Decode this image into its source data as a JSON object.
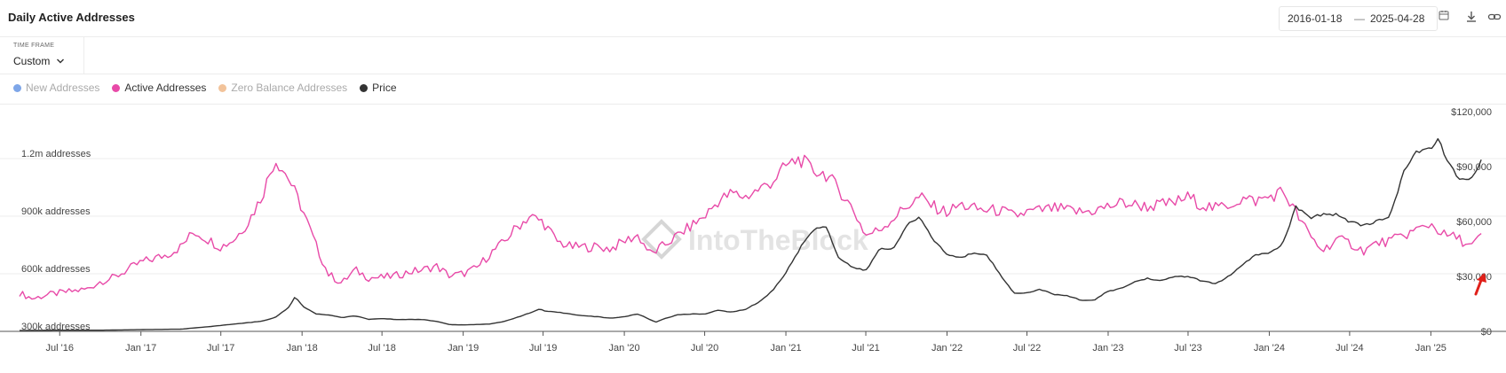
{
  "header": {
    "title": "Daily Active Addresses",
    "date_start": "2016-01-18",
    "date_separator": "—",
    "date_end": "2025-04-28"
  },
  "timeframe": {
    "label": "TIME FRAME",
    "value": "Custom"
  },
  "legend": [
    {
      "label": "New Addresses",
      "color": "#7ea6e8",
      "active": false
    },
    {
      "label": "Active Addresses",
      "color": "#e84aa8",
      "active": true
    },
    {
      "label": "Zero Balance Addresses",
      "color": "#f2c39a",
      "active": false
    },
    {
      "label": "Price",
      "color": "#333333",
      "active": true
    }
  ],
  "watermark": "IntoTheBlock",
  "chart_data": {
    "type": "line",
    "x_range": [
      "2016-04-01",
      "2025-05-15"
    ],
    "x_ticks": [
      "Jul '16",
      "Jan '17",
      "Jul '17",
      "Jan '18",
      "Jul '18",
      "Jan '19",
      "Jul '19",
      "Jan '20",
      "Jul '20",
      "Jan '21",
      "Jul '21",
      "Jan '22",
      "Jul '22",
      "Jan '23",
      "Jul '23",
      "Jan '24",
      "Jul '24",
      "Jan '25"
    ],
    "y_left": {
      "label": "addresses",
      "min": 300000,
      "max": 1350000,
      "ticks": [
        300000,
        600000,
        900000,
        1200000
      ],
      "tick_labels": [
        "300k addresses",
        "600k addresses",
        "900k addresses",
        "1.2m addresses"
      ]
    },
    "y_right": {
      "label": "price",
      "min": 0,
      "max": 120000,
      "ticks": [
        0,
        30000,
        60000,
        90000,
        120000
      ],
      "tick_labels": [
        "$0",
        "$30,000",
        "$60,000",
        "$90,000",
        "$120,000"
      ]
    },
    "series": [
      {
        "name": "Active Addresses",
        "axis": "left",
        "color": "#e84aa8",
        "dates": [
          "2016-04-01",
          "2016-05-01",
          "2016-06-01",
          "2016-07-01",
          "2016-08-01",
          "2016-09-01",
          "2016-10-01",
          "2016-11-01",
          "2016-12-01",
          "2017-01-01",
          "2017-02-01",
          "2017-03-01",
          "2017-04-01",
          "2017-05-01",
          "2017-06-01",
          "2017-07-01",
          "2017-08-01",
          "2017-09-01",
          "2017-10-01",
          "2017-11-01",
          "2017-12-01",
          "2018-01-01",
          "2018-02-01",
          "2018-03-01",
          "2018-04-01",
          "2018-05-01",
          "2018-06-01",
          "2018-07-01",
          "2018-08-01",
          "2018-09-01",
          "2018-10-01",
          "2018-11-01",
          "2018-12-01",
          "2019-01-01",
          "2019-02-01",
          "2019-03-01",
          "2019-04-01",
          "2019-05-01",
          "2019-06-01",
          "2019-07-01",
          "2019-08-01",
          "2019-09-01",
          "2019-10-01",
          "2019-11-01",
          "2019-12-01",
          "2020-01-01",
          "2020-02-01",
          "2020-03-01",
          "2020-04-01",
          "2020-05-01",
          "2020-06-01",
          "2020-07-01",
          "2020-08-01",
          "2020-09-01",
          "2020-10-01",
          "2020-11-01",
          "2020-12-01",
          "2021-01-01",
          "2021-02-01",
          "2021-03-01",
          "2021-04-01",
          "2021-05-01",
          "2021-06-01",
          "2021-07-01",
          "2021-08-01",
          "2021-09-01",
          "2021-10-01",
          "2021-11-01",
          "2021-12-01",
          "2022-01-01",
          "2022-02-01",
          "2022-03-01",
          "2022-04-01",
          "2022-05-01",
          "2022-06-01",
          "2022-07-01",
          "2022-08-01",
          "2022-09-01",
          "2022-10-01",
          "2022-11-01",
          "2022-12-01",
          "2023-01-01",
          "2023-02-01",
          "2023-03-01",
          "2023-04-01",
          "2023-05-01",
          "2023-06-01",
          "2023-07-01",
          "2023-08-01",
          "2023-09-01",
          "2023-10-01",
          "2023-11-01",
          "2023-12-01",
          "2024-01-01",
          "2024-02-01",
          "2024-03-01",
          "2024-04-01",
          "2024-05-01",
          "2024-06-01",
          "2024-07-01",
          "2024-08-01",
          "2024-09-01",
          "2024-10-01",
          "2024-11-01",
          "2024-12-01",
          "2025-01-01",
          "2025-02-01",
          "2025-03-01",
          "2025-04-01",
          "2025-04-28"
        ],
        "values": [
          500000,
          470000,
          490000,
          500000,
          510000,
          520000,
          560000,
          580000,
          620000,
          660000,
          680000,
          700000,
          740000,
          820000,
          780000,
          740000,
          780000,
          870000,
          1000000,
          1200000,
          1100000,
          940000,
          750000,
          600000,
          550000,
          620000,
          580000,
          580000,
          590000,
          610000,
          620000,
          640000,
          590000,
          600000,
          630000,
          700000,
          760000,
          840000,
          900000,
          870000,
          770000,
          740000,
          740000,
          740000,
          730000,
          770000,
          800000,
          700000,
          750000,
          800000,
          850000,
          900000,
          980000,
          1020000,
          1000000,
          1040000,
          1080000,
          1160000,
          1200000,
          1140000,
          1120000,
          1040000,
          940000,
          800000,
          830000,
          890000,
          950000,
          1000000,
          950000,
          920000,
          960000,
          940000,
          930000,
          930000,
          900000,
          920000,
          930000,
          940000,
          930000,
          920000,
          930000,
          950000,
          970000,
          960000,
          950000,
          960000,
          970000,
          1000000,
          960000,
          940000,
          960000,
          990000,
          980000,
          1000000,
          1030000,
          920000,
          800000,
          720000,
          780000,
          760000,
          720000,
          760000,
          770000,
          800000,
          830000,
          860000,
          800000,
          790000,
          740000,
          800000
        ]
      },
      {
        "name": "Price",
        "axis": "right",
        "color": "#333333",
        "dates": [
          "2016-04-01",
          "2016-07-01",
          "2016-10-01",
          "2017-01-01",
          "2017-04-01",
          "2017-06-01",
          "2017-08-01",
          "2017-10-01",
          "2017-11-01",
          "2017-12-01",
          "2017-12-17",
          "2018-01-01",
          "2018-02-01",
          "2018-03-01",
          "2018-04-01",
          "2018-05-01",
          "2018-06-01",
          "2018-07-01",
          "2018-08-01",
          "2018-10-01",
          "2018-11-01",
          "2018-12-01",
          "2019-01-01",
          "2019-03-01",
          "2019-04-01",
          "2019-05-01",
          "2019-06-01",
          "2019-06-26",
          "2019-07-01",
          "2019-08-01",
          "2019-09-01",
          "2019-10-01",
          "2019-11-01",
          "2019-12-01",
          "2020-01-01",
          "2020-02-01",
          "2020-03-12",
          "2020-04-01",
          "2020-05-01",
          "2020-06-01",
          "2020-07-01",
          "2020-08-01",
          "2020-09-01",
          "2020-10-01",
          "2020-11-01",
          "2020-12-01",
          "2021-01-01",
          "2021-02-01",
          "2021-03-01",
          "2021-04-01",
          "2021-05-01",
          "2021-05-20",
          "2021-06-01",
          "2021-07-01",
          "2021-08-01",
          "2021-09-01",
          "2021-10-01",
          "2021-11-01",
          "2021-12-01",
          "2022-01-01",
          "2022-02-01",
          "2022-03-01",
          "2022-04-01",
          "2022-05-01",
          "2022-06-01",
          "2022-07-01",
          "2022-08-01",
          "2022-09-01",
          "2022-10-01",
          "2022-11-01",
          "2022-12-01",
          "2023-01-01",
          "2023-02-01",
          "2023-03-01",
          "2023-04-01",
          "2023-05-01",
          "2023-06-01",
          "2023-07-01",
          "2023-08-01",
          "2023-09-01",
          "2023-10-01",
          "2023-11-01",
          "2023-12-01",
          "2024-01-01",
          "2024-02-01",
          "2024-03-01",
          "2024-04-01",
          "2024-05-01",
          "2024-06-01",
          "2024-07-01",
          "2024-08-01",
          "2024-09-01",
          "2024-10-01",
          "2024-11-01",
          "2024-12-01",
          "2025-01-01",
          "2025-01-20",
          "2025-02-01",
          "2025-03-01",
          "2025-04-01",
          "2025-04-28"
        ],
        "values": [
          420,
          650,
          620,
          950,
          1200,
          2500,
          4000,
          5500,
          7500,
          13000,
          19000,
          14000,
          9500,
          9000,
          7500,
          8500,
          6500,
          7000,
          6500,
          6500,
          5500,
          3700,
          3500,
          4000,
          5200,
          7500,
          10000,
          12500,
          11000,
          10500,
          9500,
          8500,
          8000,
          7200,
          8000,
          9500,
          5000,
          7000,
          9000,
          9500,
          9500,
          11500,
          10500,
          12000,
          16000,
          22000,
          32000,
          45000,
          55000,
          58000,
          40000,
          37000,
          35000,
          33000,
          45000,
          45000,
          58000,
          62000,
          50000,
          42000,
          40000,
          43000,
          42000,
          31000,
          21000,
          21000,
          23000,
          20000,
          19500,
          17000,
          17000,
          22000,
          23500,
          27000,
          29000,
          27500,
          30000,
          30000,
          27500,
          26000,
          30000,
          36000,
          42000,
          42500,
          48000,
          68000,
          62000,
          64000,
          64000,
          60000,
          58000,
          60000,
          63000,
          88000,
          98000,
          100000,
          105000,
          97000,
          84000,
          82000,
          94000
        ]
      }
    ]
  }
}
